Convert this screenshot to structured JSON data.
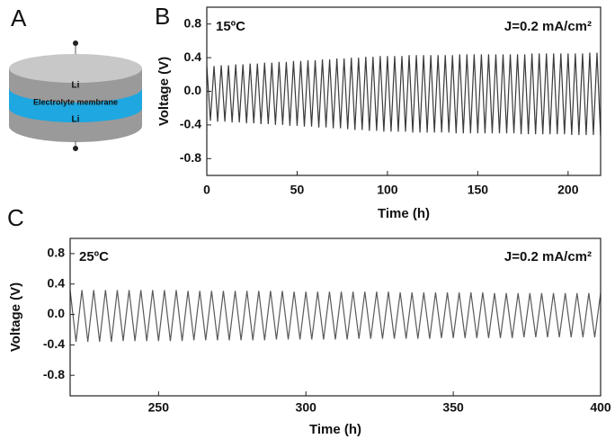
{
  "panel_a": {
    "label": "A",
    "layers": [
      "Li",
      "Electrolyte membrane",
      "Li"
    ]
  },
  "chart_data": [
    {
      "type": "line",
      "panel": "B",
      "annotation_left": "15ºC",
      "annotation_right": "J=0.2 mA/cm²",
      "xlabel": "Time (h)",
      "ylabel": "Voltage (V)",
      "xlim": [
        0,
        218
      ],
      "ylim": [
        -1.0,
        1.0
      ],
      "xticks": [
        0,
        50,
        100,
        150,
        200
      ],
      "yticks": [
        -0.8,
        -0.4,
        {
          "value": 0,
          "label": "0.0"
        },
        0.4,
        0.8
      ],
      "series": [
        {
          "color": "#3a3a3a",
          "x": [
            0,
            2,
            4,
            6,
            8,
            10,
            12,
            14,
            16,
            18,
            20,
            22,
            24,
            26,
            28,
            30,
            32,
            34,
            36,
            38,
            40,
            42,
            44,
            46,
            48,
            50,
            52,
            54,
            56,
            58,
            60,
            62,
            64,
            66,
            68,
            70,
            72,
            74,
            76,
            78,
            80,
            82,
            84,
            86,
            88,
            90,
            92,
            94,
            96,
            98,
            100,
            102,
            104,
            106,
            108,
            110,
            112,
            114,
            116,
            118,
            120,
            122,
            124,
            126,
            128,
            130,
            132,
            134,
            136,
            138,
            140,
            142,
            144,
            146,
            148,
            150,
            152,
            154,
            156,
            158,
            160,
            162,
            164,
            166,
            168,
            170,
            172,
            174,
            176,
            178,
            180,
            182,
            184,
            186,
            188,
            190,
            192,
            194,
            196,
            198,
            200,
            202,
            204,
            206,
            208,
            210,
            212,
            214,
            216,
            218
          ],
          "values": [
            0.3,
            -0.35,
            0.3,
            -0.36,
            0.31,
            -0.36,
            0.31,
            -0.37,
            0.32,
            -0.37,
            0.32,
            -0.38,
            0.33,
            -0.38,
            0.33,
            -0.39,
            0.34,
            -0.39,
            0.34,
            -0.4,
            0.35,
            -0.4,
            0.35,
            -0.41,
            0.36,
            -0.41,
            0.36,
            -0.42,
            0.37,
            -0.42,
            0.37,
            -0.43,
            0.38,
            -0.43,
            0.38,
            -0.44,
            0.39,
            -0.44,
            0.39,
            -0.45,
            0.4,
            -0.46,
            0.4,
            -0.46,
            0.41,
            -0.47,
            0.41,
            -0.47,
            0.42,
            -0.48,
            0.42,
            -0.48,
            0.42,
            -0.48,
            0.42,
            -0.48,
            0.43,
            -0.49,
            0.43,
            -0.49,
            0.43,
            -0.49,
            0.43,
            -0.49,
            0.43,
            -0.49,
            0.43,
            -0.49,
            0.43,
            -0.5,
            0.44,
            -0.5,
            0.44,
            -0.5,
            0.44,
            -0.5,
            0.44,
            -0.5,
            0.44,
            -0.5,
            0.44,
            -0.5,
            0.44,
            -0.5,
            0.44,
            -0.5,
            0.44,
            -0.51,
            0.44,
            -0.51,
            0.45,
            -0.51,
            0.45,
            -0.51,
            0.45,
            -0.51,
            0.45,
            -0.51,
            0.45,
            -0.51,
            0.45,
            -0.52,
            0.45,
            -0.52,
            0.45,
            -0.52,
            0.46,
            -0.52,
            0.46,
            -0.53
          ]
        }
      ]
    },
    {
      "type": "line",
      "panel": "C",
      "annotation_left": "25ºC",
      "annotation_right": "J=0.2 mA/cm²",
      "xlabel": "Time (h)",
      "ylabel": "Voltage (V)",
      "xlim": [
        220,
        400
      ],
      "ylim": [
        -1.07,
        1.0
      ],
      "xticks": [
        250,
        300,
        350,
        400
      ],
      "yticks": [
        -0.8,
        -0.4,
        {
          "value": 0,
          "label": "0.0"
        },
        0.4,
        0.8
      ],
      "series": [
        {
          "color": "#5a5a5a",
          "x": [
            220,
            222,
            224,
            226,
            228,
            230,
            232,
            234,
            236,
            238,
            240,
            242,
            244,
            246,
            248,
            250,
            252,
            254,
            256,
            258,
            260,
            262,
            264,
            266,
            268,
            270,
            272,
            274,
            276,
            278,
            280,
            282,
            284,
            286,
            288,
            290,
            292,
            294,
            296,
            298,
            300,
            302,
            304,
            306,
            308,
            310,
            312,
            314,
            316,
            318,
            320,
            322,
            324,
            326,
            328,
            330,
            332,
            334,
            336,
            338,
            340,
            342,
            344,
            346,
            348,
            350,
            352,
            354,
            356,
            358,
            360,
            362,
            364,
            366,
            368,
            370,
            372,
            374,
            376,
            378,
            380,
            382,
            384,
            386,
            388,
            390,
            392,
            394,
            396,
            398,
            400
          ],
          "values": [
            0.32,
            -0.36,
            0.32,
            -0.36,
            0.32,
            -0.36,
            0.32,
            -0.36,
            0.32,
            -0.35,
            0.32,
            -0.35,
            0.32,
            -0.35,
            0.32,
            -0.35,
            0.32,
            -0.35,
            0.32,
            -0.35,
            0.31,
            -0.34,
            0.31,
            -0.34,
            0.31,
            -0.34,
            0.31,
            -0.34,
            0.31,
            -0.34,
            0.31,
            -0.34,
            0.31,
            -0.34,
            0.31,
            -0.33,
            0.31,
            -0.33,
            0.3,
            -0.33,
            0.3,
            -0.33,
            0.3,
            -0.33,
            0.3,
            -0.33,
            0.3,
            -0.33,
            0.3,
            -0.32,
            0.3,
            -0.32,
            0.3,
            -0.32,
            0.3,
            -0.32,
            0.29,
            -0.32,
            0.29,
            -0.32,
            0.29,
            -0.32,
            0.29,
            -0.31,
            0.29,
            -0.31,
            0.29,
            -0.31,
            0.29,
            -0.31,
            0.29,
            -0.31,
            0.28,
            -0.31,
            0.28,
            -0.31,
            0.28,
            -0.3,
            0.28,
            -0.3,
            0.28,
            -0.3,
            0.28,
            -0.3,
            0.28,
            -0.3,
            0.28,
            -0.3,
            0.28,
            -0.3,
            0.28
          ]
        }
      ]
    }
  ]
}
